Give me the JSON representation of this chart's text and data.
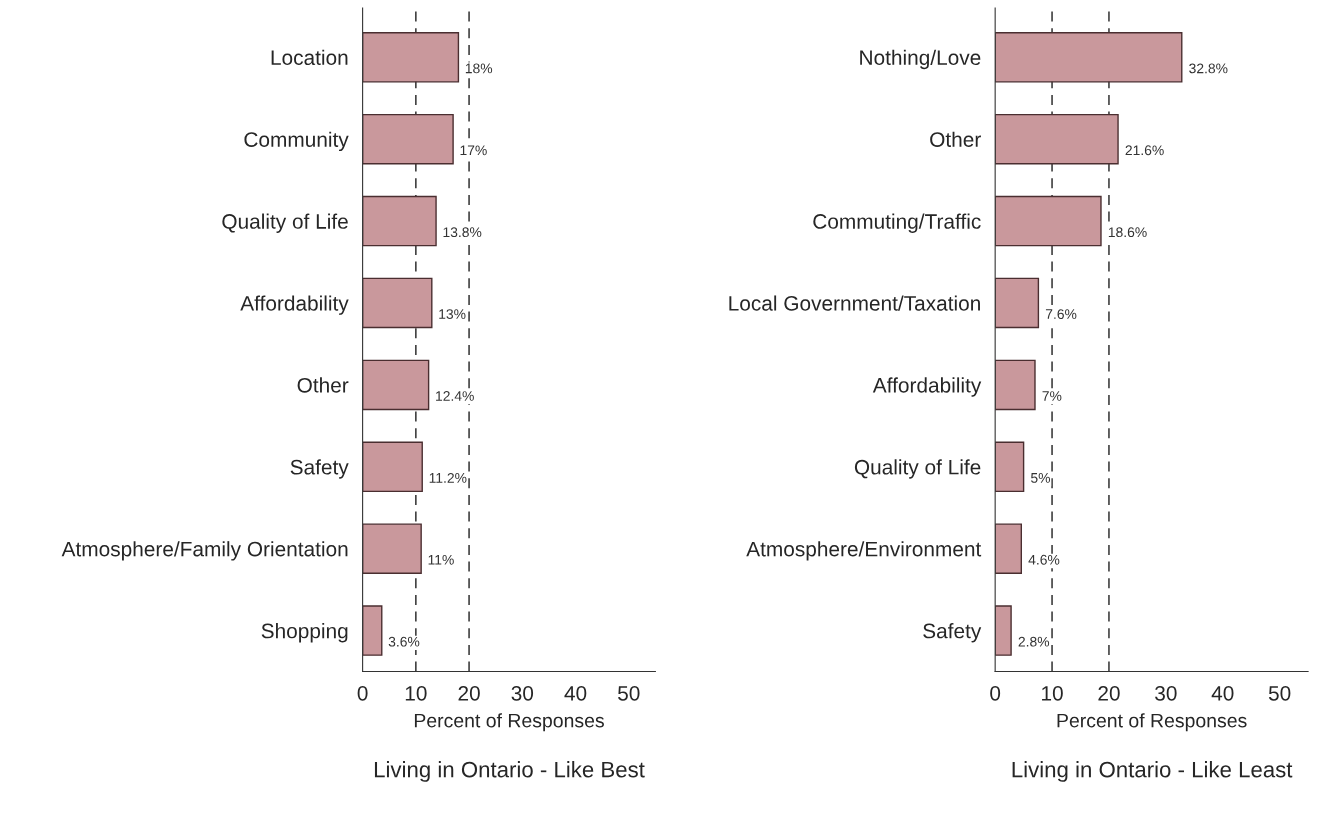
{
  "chart_data": [
    {
      "type": "bar",
      "orientation": "horizontal",
      "title": "Living in Ontario - Like Best",
      "xlabel": "Percent of Responses",
      "categories": [
        "Location",
        "Community",
        "Quality of Life",
        "Affordability",
        "Other",
        "Safety",
        "Atmosphere/Family Orientation",
        "Shopping"
      ],
      "values": [
        18,
        17,
        13.8,
        13,
        12.4,
        11.2,
        11,
        3.6
      ],
      "value_labels": [
        "18%",
        "17%",
        "13.8%",
        "13%",
        "12.4%",
        "11.2%",
        "11%",
        "3.6%"
      ],
      "color": "#c9989c",
      "xlim": [
        0,
        55
      ],
      "xticks": [
        0,
        10,
        20,
        30,
        40,
        50
      ],
      "grid": false,
      "ref_lines": [
        {
          "axis": "x",
          "value": 10,
          "line_style": "dashed"
        },
        {
          "axis": "x",
          "value": 20,
          "line_style": "dashed"
        }
      ]
    },
    {
      "type": "bar",
      "orientation": "horizontal",
      "title": "Living in Ontario - Like Least",
      "xlabel": "Percent of Responses",
      "categories": [
        "Nothing/Love",
        "Other",
        "Commuting/Traffic",
        "Local Government/Taxation",
        "Affordability",
        "Quality of Life",
        "Atmosphere/Environment",
        "Safety"
      ],
      "values": [
        32.8,
        21.6,
        18.6,
        7.6,
        7,
        5,
        4.6,
        2.8
      ],
      "value_labels": [
        "32.8%",
        "21.6%",
        "18.6%",
        "7.6%",
        "7%",
        "5%",
        "4.6%",
        "2.8%"
      ],
      "color": "#c9989c",
      "xlim": [
        0,
        55
      ],
      "xticks": [
        0,
        10,
        20,
        30,
        40,
        50
      ],
      "grid": false,
      "ref_lines": [
        {
          "axis": "x",
          "value": 10,
          "line_style": "dashed"
        },
        {
          "axis": "x",
          "value": 20,
          "line_style": "dashed"
        }
      ]
    }
  ]
}
